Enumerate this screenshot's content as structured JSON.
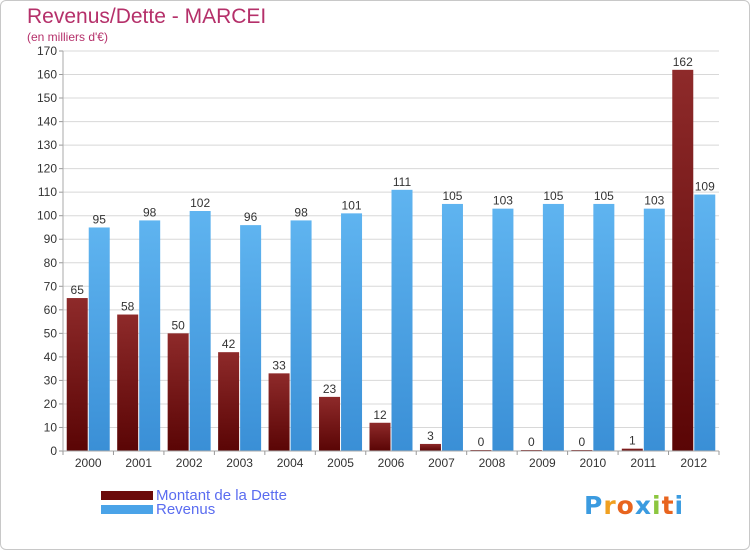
{
  "header": {
    "title": "Revenus/Dette - MARCEI",
    "subtitle": "(en milliers d'€)"
  },
  "legend": {
    "placement": "bottom-left",
    "items": [
      {
        "label": "Montant de la Dette",
        "color": "#6b0a0a"
      },
      {
        "label": "Revenus",
        "color": "#4aa3e8"
      }
    ]
  },
  "logo": {
    "text": "Proxiti",
    "letters": [
      {
        "ch": "P",
        "color": "#3b9be0"
      },
      {
        "ch": "r",
        "color": "#f0a020"
      },
      {
        "ch": "o",
        "color": "#e8641e"
      },
      {
        "ch": "x",
        "color": "#3b9be0"
      },
      {
        "ch": "i",
        "color": "#8cc63f"
      },
      {
        "ch": "t",
        "color": "#e8641e"
      },
      {
        "ch": "i",
        "color": "#3b9be0"
      }
    ]
  },
  "colors": {
    "dette_top": "#8e2a2a",
    "dette_bottom": "#5a0505",
    "revenus_top": "#5fb4f0",
    "revenus_bottom": "#3a8fd6",
    "grid": "#d8d8d8",
    "axis_text": "#333333"
  },
  "chart_data": {
    "type": "bar",
    "categories": [
      "2000",
      "2001",
      "2002",
      "2003",
      "2004",
      "2005",
      "2006",
      "2007",
      "2008",
      "2009",
      "2010",
      "2011",
      "2012"
    ],
    "series": [
      {
        "name": "Montant de la Dette",
        "values": [
          65,
          58,
          50,
          42,
          33,
          23,
          12,
          3,
          0,
          0,
          0,
          1,
          162
        ]
      },
      {
        "name": "Revenus",
        "values": [
          95,
          98,
          102,
          96,
          98,
          101,
          111,
          105,
          103,
          105,
          105,
          103,
          109
        ]
      }
    ],
    "title": "Revenus/Dette - MARCEI",
    "subtitle": "(en milliers d'€)",
    "ylim": [
      0,
      170
    ],
    "yticks": [
      0,
      10,
      20,
      30,
      40,
      50,
      60,
      70,
      80,
      90,
      100,
      110,
      120,
      130,
      140,
      150,
      160,
      170
    ],
    "grid": true
  }
}
